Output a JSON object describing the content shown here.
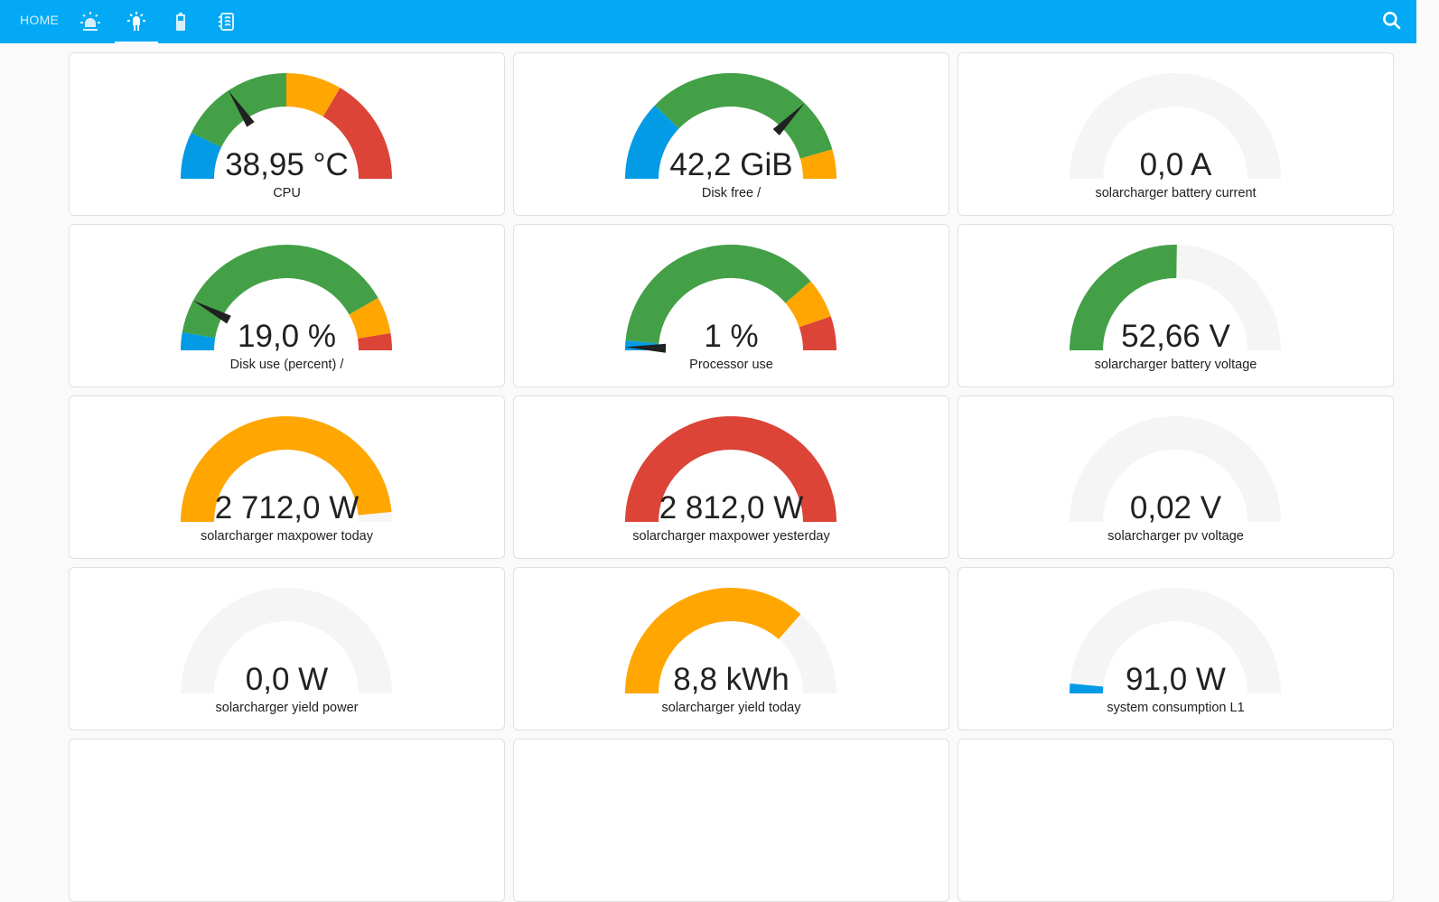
{
  "header": {
    "home_label": "HOME",
    "tabs": [
      {
        "icon": "alarm-light-icon",
        "active": false
      },
      {
        "icon": "led-on-icon",
        "active": true
      },
      {
        "icon": "battery-icon",
        "active": false
      },
      {
        "icon": "notebook-icon",
        "active": false
      }
    ],
    "search_icon": "magnify-icon"
  },
  "colors": {
    "header": "#03a9f4",
    "blue": "#039be5",
    "green": "#43a047",
    "orange": "#ffa600",
    "red": "#db4437",
    "track": "#f5f5f5"
  },
  "gauges": [
    {
      "value": "38,95 °C",
      "label": "CPU",
      "needle": 0.315,
      "segments": [
        [
          "#039be5",
          0,
          0.144
        ],
        [
          "#43a047",
          0.144,
          0.5
        ],
        [
          "#ffa600",
          0.5,
          0.67
        ],
        [
          "#db4437",
          0.67,
          1
        ]
      ]
    },
    {
      "value": "42,2 GiB",
      "label": "Disk free /",
      "needle": 0.746,
      "segments": [
        [
          "#039be5",
          0,
          0.245
        ],
        [
          "#43a047",
          0.245,
          0.91
        ],
        [
          "#ffa600",
          0.91,
          1
        ]
      ]
    },
    {
      "value": "0,0 A",
      "label": "solarcharger battery current",
      "fill": 0,
      "color": "#039be5"
    },
    {
      "value": "19,0 %",
      "label": "Disk use (percent) /",
      "needle": 0.156,
      "segments": [
        [
          "#039be5",
          0,
          0.055
        ],
        [
          "#43a047",
          0.055,
          0.835
        ],
        [
          "#ffa600",
          0.835,
          0.948
        ],
        [
          "#db4437",
          0.948,
          1
        ]
      ]
    },
    {
      "value": "1 %",
      "label": "Processor use",
      "needle": 0.01,
      "segments": [
        [
          "#039be5",
          0,
          0.03
        ],
        [
          "#43a047",
          0.03,
          0.773
        ],
        [
          "#ffa600",
          0.773,
          0.896
        ],
        [
          "#db4437",
          0.896,
          1
        ]
      ]
    },
    {
      "value": "52,66 V",
      "label": "solarcharger battery voltage",
      "fill": 0.505,
      "color": "#43a047"
    },
    {
      "value": "2 712,0 W",
      "label": "solarcharger maxpower today",
      "fill": 0.97,
      "color": "#ffa600"
    },
    {
      "value": "2 812,0 W",
      "label": "solarcharger maxpower yesterday",
      "fill": 1,
      "color": "#db4437"
    },
    {
      "value": "0,02 V",
      "label": "solarcharger pv voltage",
      "fill": 0,
      "color": "#039be5"
    },
    {
      "value": "0,0 W",
      "label": "solarcharger yield power",
      "fill": 0,
      "color": "#039be5"
    },
    {
      "value": "8,8 kWh",
      "label": "solarcharger yield today",
      "fill": 0.73,
      "color": "#ffa600"
    },
    {
      "value": "91,0 W",
      "label": "system consumption L1",
      "fill": 0.03,
      "color": "#039be5"
    }
  ]
}
